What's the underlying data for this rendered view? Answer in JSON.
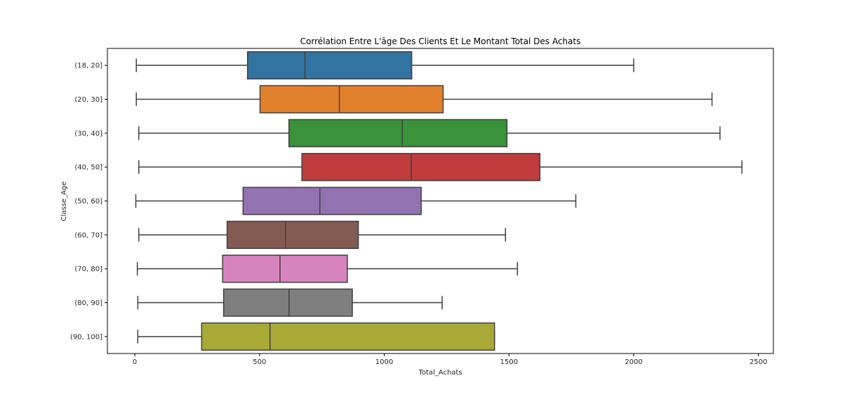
{
  "chart_data": {
    "type": "boxplot",
    "orientation": "horizontal",
    "title": "Corrélation Entre L'âge Des Clients Et Le Montant Total Des Achats",
    "xlabel": "Total_Achats",
    "ylabel": "Classe_Age",
    "xlim": [
      -110,
      2560
    ],
    "x_ticks": [
      0,
      500,
      1000,
      1500,
      2000,
      2500
    ],
    "grid": false,
    "categories": [
      "(18, 20]",
      "(20, 30]",
      "(30, 40]",
      "(40, 50]",
      "(50, 60]",
      "(60, 70]",
      "(70, 80]",
      "(80, 90]",
      "(90, 100]"
    ],
    "boxes": [
      {
        "category": "(18, 20]",
        "whisker_low": 6,
        "q1": 452,
        "median": 682,
        "q3": 1110,
        "whisker_high": 2000,
        "color": "#3274a1"
      },
      {
        "category": "(20, 30]",
        "whisker_low": 6,
        "q1": 502,
        "median": 820,
        "q3": 1236,
        "whisker_high": 2314,
        "color": "#e1812c"
      },
      {
        "category": "(30, 40]",
        "whisker_low": 16,
        "q1": 618,
        "median": 1072,
        "q3": 1492,
        "whisker_high": 2346,
        "color": "#3a923a"
      },
      {
        "category": "(40, 50]",
        "whisker_low": 16,
        "q1": 670,
        "median": 1108,
        "q3": 1624,
        "whisker_high": 2434,
        "color": "#c03d3e"
      },
      {
        "category": "(50, 60]",
        "whisker_low": 4,
        "q1": 434,
        "median": 742,
        "q3": 1148,
        "whisker_high": 1768,
        "color": "#9372b2"
      },
      {
        "category": "(60, 70]",
        "whisker_low": 16,
        "q1": 370,
        "median": 604,
        "q3": 896,
        "whisker_high": 1486,
        "color": "#845b53"
      },
      {
        "category": "(70, 80]",
        "whisker_low": 10,
        "q1": 352,
        "median": 582,
        "q3": 852,
        "whisker_high": 1534,
        "color": "#d684bd"
      },
      {
        "category": "(80, 90]",
        "whisker_low": 12,
        "q1": 356,
        "median": 618,
        "q3": 872,
        "whisker_high": 1232,
        "color": "#7f7f7f"
      },
      {
        "category": "(90, 100]",
        "whisker_low": 12,
        "q1": 268,
        "median": 542,
        "q3": 1442,
        "whisker_high": 1442,
        "color": "#a9aa35"
      }
    ]
  }
}
